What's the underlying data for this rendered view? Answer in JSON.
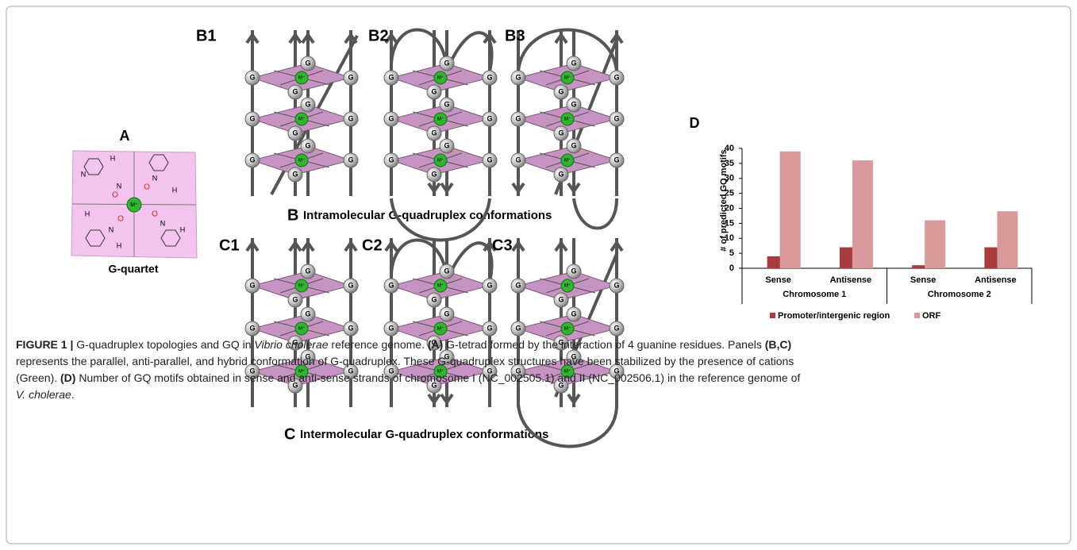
{
  "panel_a": {
    "label": "A",
    "caption": "G-quartet",
    "atoms": {
      "nitrogen": "N",
      "hydrogen": "H",
      "oxygen": "O"
    }
  },
  "diagram_labels": {
    "guanine": "G",
    "cation": "M⁺"
  },
  "panel_b": {
    "labels": [
      "B1",
      "B2",
      "B3"
    ],
    "letter": "B",
    "caption": "Intramolecular G-quadruplex conformations"
  },
  "panel_c": {
    "labels": [
      "C1",
      "C2",
      "C3"
    ],
    "letter": "C",
    "caption": "Intermolecular G-quadruplex conformations"
  },
  "panel_d": {
    "label": "D"
  },
  "chart_data": {
    "type": "bar",
    "y_label": "# of predicted GQ motifs",
    "categories": [
      "Sense",
      "Antisense",
      "Sense",
      "Antisense"
    ],
    "groups": [
      "Chromosome 1",
      "Chromosome 2"
    ],
    "series": [
      {
        "name": "Promoter/intergenic region",
        "color": "#a83c3c",
        "values": [
          4,
          7,
          1,
          7
        ]
      },
      {
        "name": "ORF",
        "color": "#d9999b",
        "values": [
          39,
          36,
          16,
          19
        ]
      }
    ],
    "ylim": [
      0,
      40
    ],
    "yticks": [
      0,
      5,
      10,
      15,
      20,
      25,
      30,
      35,
      40
    ],
    "grid": false,
    "legend": "bottom"
  },
  "caption": {
    "lines": [
      [
        {
          "text": "FIGURE 1 |",
          "style": "b"
        },
        {
          "text": " G-quadruplex topologies and GQ in ",
          "style": "r"
        },
        {
          "text": "Vibrio cholerae",
          "style": "i"
        },
        {
          "text": " reference genome. ",
          "style": "r"
        },
        {
          "text": "(A)",
          "style": "b"
        },
        {
          "text": " G-tetrad formed by the interaction of 4 guanine residues. Panels ",
          "style": "r"
        },
        {
          "text": "(B,C)",
          "style": "b"
        }
      ],
      [
        {
          "text": "represents the parallel, anti-parallel, and hybrid conformation of G-quadruplex. These G-quadruplex structures have been stabilized by the presence of cations",
          "style": "r"
        }
      ],
      [
        {
          "text": "(Green). ",
          "style": "r"
        },
        {
          "text": "(D)",
          "style": "b"
        },
        {
          "text": " Number of GQ motifs obtained in sense and anti-sense strands of chromosome I (NC_002505.1) and II (NC_002506.1) in the reference genome of",
          "style": "r"
        }
      ],
      [
        {
          "text": "V. cholerae",
          "style": "i"
        },
        {
          "text": ".",
          "style": "r"
        }
      ]
    ]
  }
}
